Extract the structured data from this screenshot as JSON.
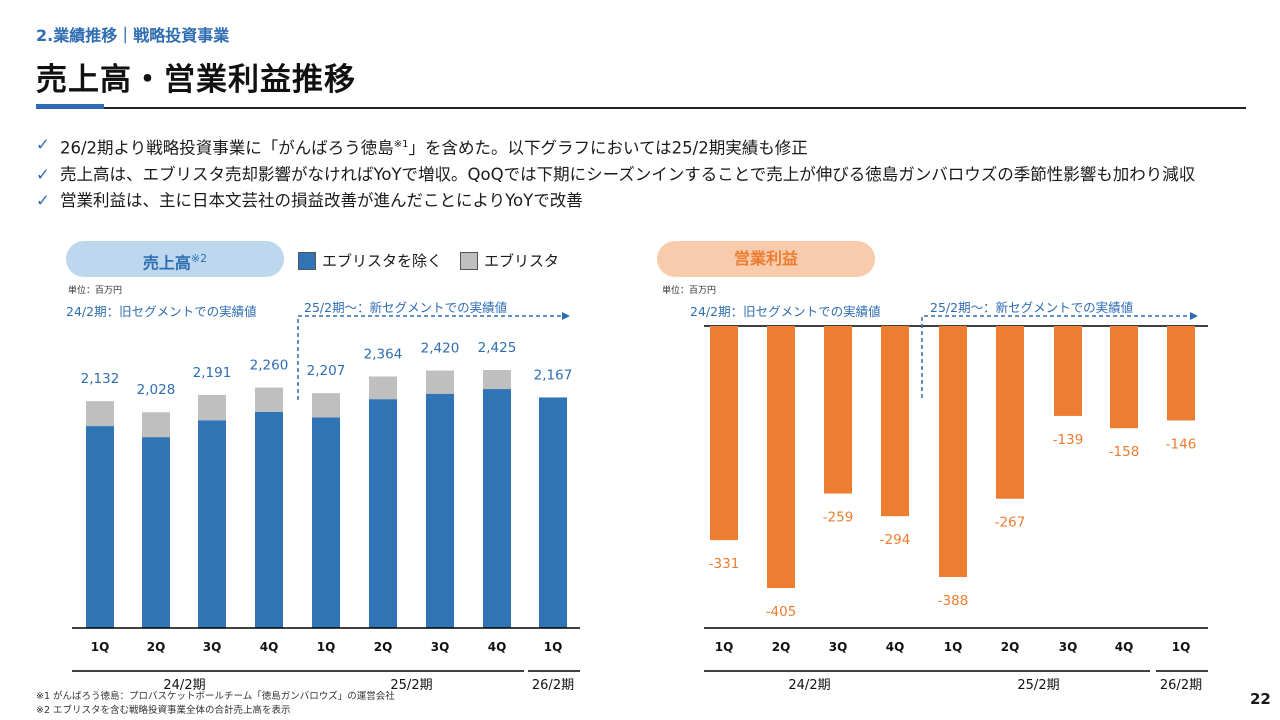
{
  "header": {
    "section": "2.業績推移｜戦略投資事業",
    "title": "売上高・営業利益推移"
  },
  "bullets": [
    {
      "check": "✓",
      "text": "26/2期より戦略投資事業に「がんばろう徳島",
      "note": "※1",
      "text_after": "」を含めた。以下グラフにおいては25/2期実績も修正"
    },
    {
      "check": "✓",
      "text": "売上高は、エブリスタ売却影響がなければYoYで増収。QoQでは下期にシーズンインすることで売上が伸びる徳島ガンバロウズの季節性影響も加わり減収"
    },
    {
      "check": "✓",
      "text": "営業利益は、主に日本文芸社の損益改善が進んだことによりYoYで改善"
    }
  ],
  "colors": {
    "blue": "#2f75b5",
    "gray": "#bfbfbf",
    "orange": "#ed7d31",
    "label_blue": "#2f6db3",
    "label_orange": "#ed7d31"
  },
  "chart_data": [
    {
      "type": "bar",
      "stacked": true,
      "title": "売上高",
      "title_note": "※2",
      "unit": "単位：百万円",
      "categories": [
        "1Q",
        "2Q",
        "3Q",
        "4Q",
        "1Q",
        "2Q",
        "3Q",
        "4Q",
        "1Q"
      ],
      "groups": [
        {
          "label": "24/2期",
          "count": 4
        },
        {
          "label": "25/2期",
          "count": 4
        },
        {
          "label": "26/2期",
          "count": 1
        }
      ],
      "series": [
        {
          "name": "エブリスタを除く",
          "values": [
            1898,
            1794,
            1953,
            2032,
            1980,
            2151,
            2202,
            2246,
            2167
          ]
        },
        {
          "name": "エブリスタ",
          "values": [
            234,
            234,
            238,
            228,
            227,
            213,
            218,
            179,
            0
          ]
        }
      ],
      "totals": [
        2132,
        2028,
        2191,
        2260,
        2207,
        2364,
        2420,
        2425,
        2167
      ],
      "total_labels": [
        "2,132",
        "2,028",
        "2,191",
        "2,260",
        "2,207",
        "2,364",
        "2,420",
        "2,425",
        "2,167"
      ],
      "segment_labels": [
        "24/2期：旧セグメントでの実績値",
        "25/2期～：新セグメントでの実績値"
      ],
      "ylim": [
        0,
        2600
      ]
    },
    {
      "type": "bar",
      "title": "営業利益",
      "unit": "単位：百万円",
      "categories": [
        "1Q",
        "2Q",
        "3Q",
        "4Q",
        "1Q",
        "2Q",
        "3Q",
        "4Q",
        "1Q"
      ],
      "groups": [
        {
          "label": "24/2期",
          "count": 4
        },
        {
          "label": "25/2期",
          "count": 4
        },
        {
          "label": "26/2期",
          "count": 1
        }
      ],
      "values": [
        -331,
        -405,
        -259,
        -294,
        -388,
        -267,
        -139,
        -158,
        -146
      ],
      "value_labels": [
        "-331",
        "-405",
        "-259",
        "-294",
        "-388",
        "-267",
        "-139",
        "-158",
        "-146"
      ],
      "segment_labels": [
        "24/2期：旧セグメントでの実績値",
        "25/2期～：新セグメントでの実績値"
      ],
      "ylim": [
        -410,
        0
      ]
    }
  ],
  "footnotes": [
    "※1 がんばろう徳島：プロバスケットボールチーム「徳島ガンバロウズ」の運営会社",
    "※2 エブリスタを含む戦略投資事業全体の合計売上高を表示"
  ],
  "page_number": "22"
}
